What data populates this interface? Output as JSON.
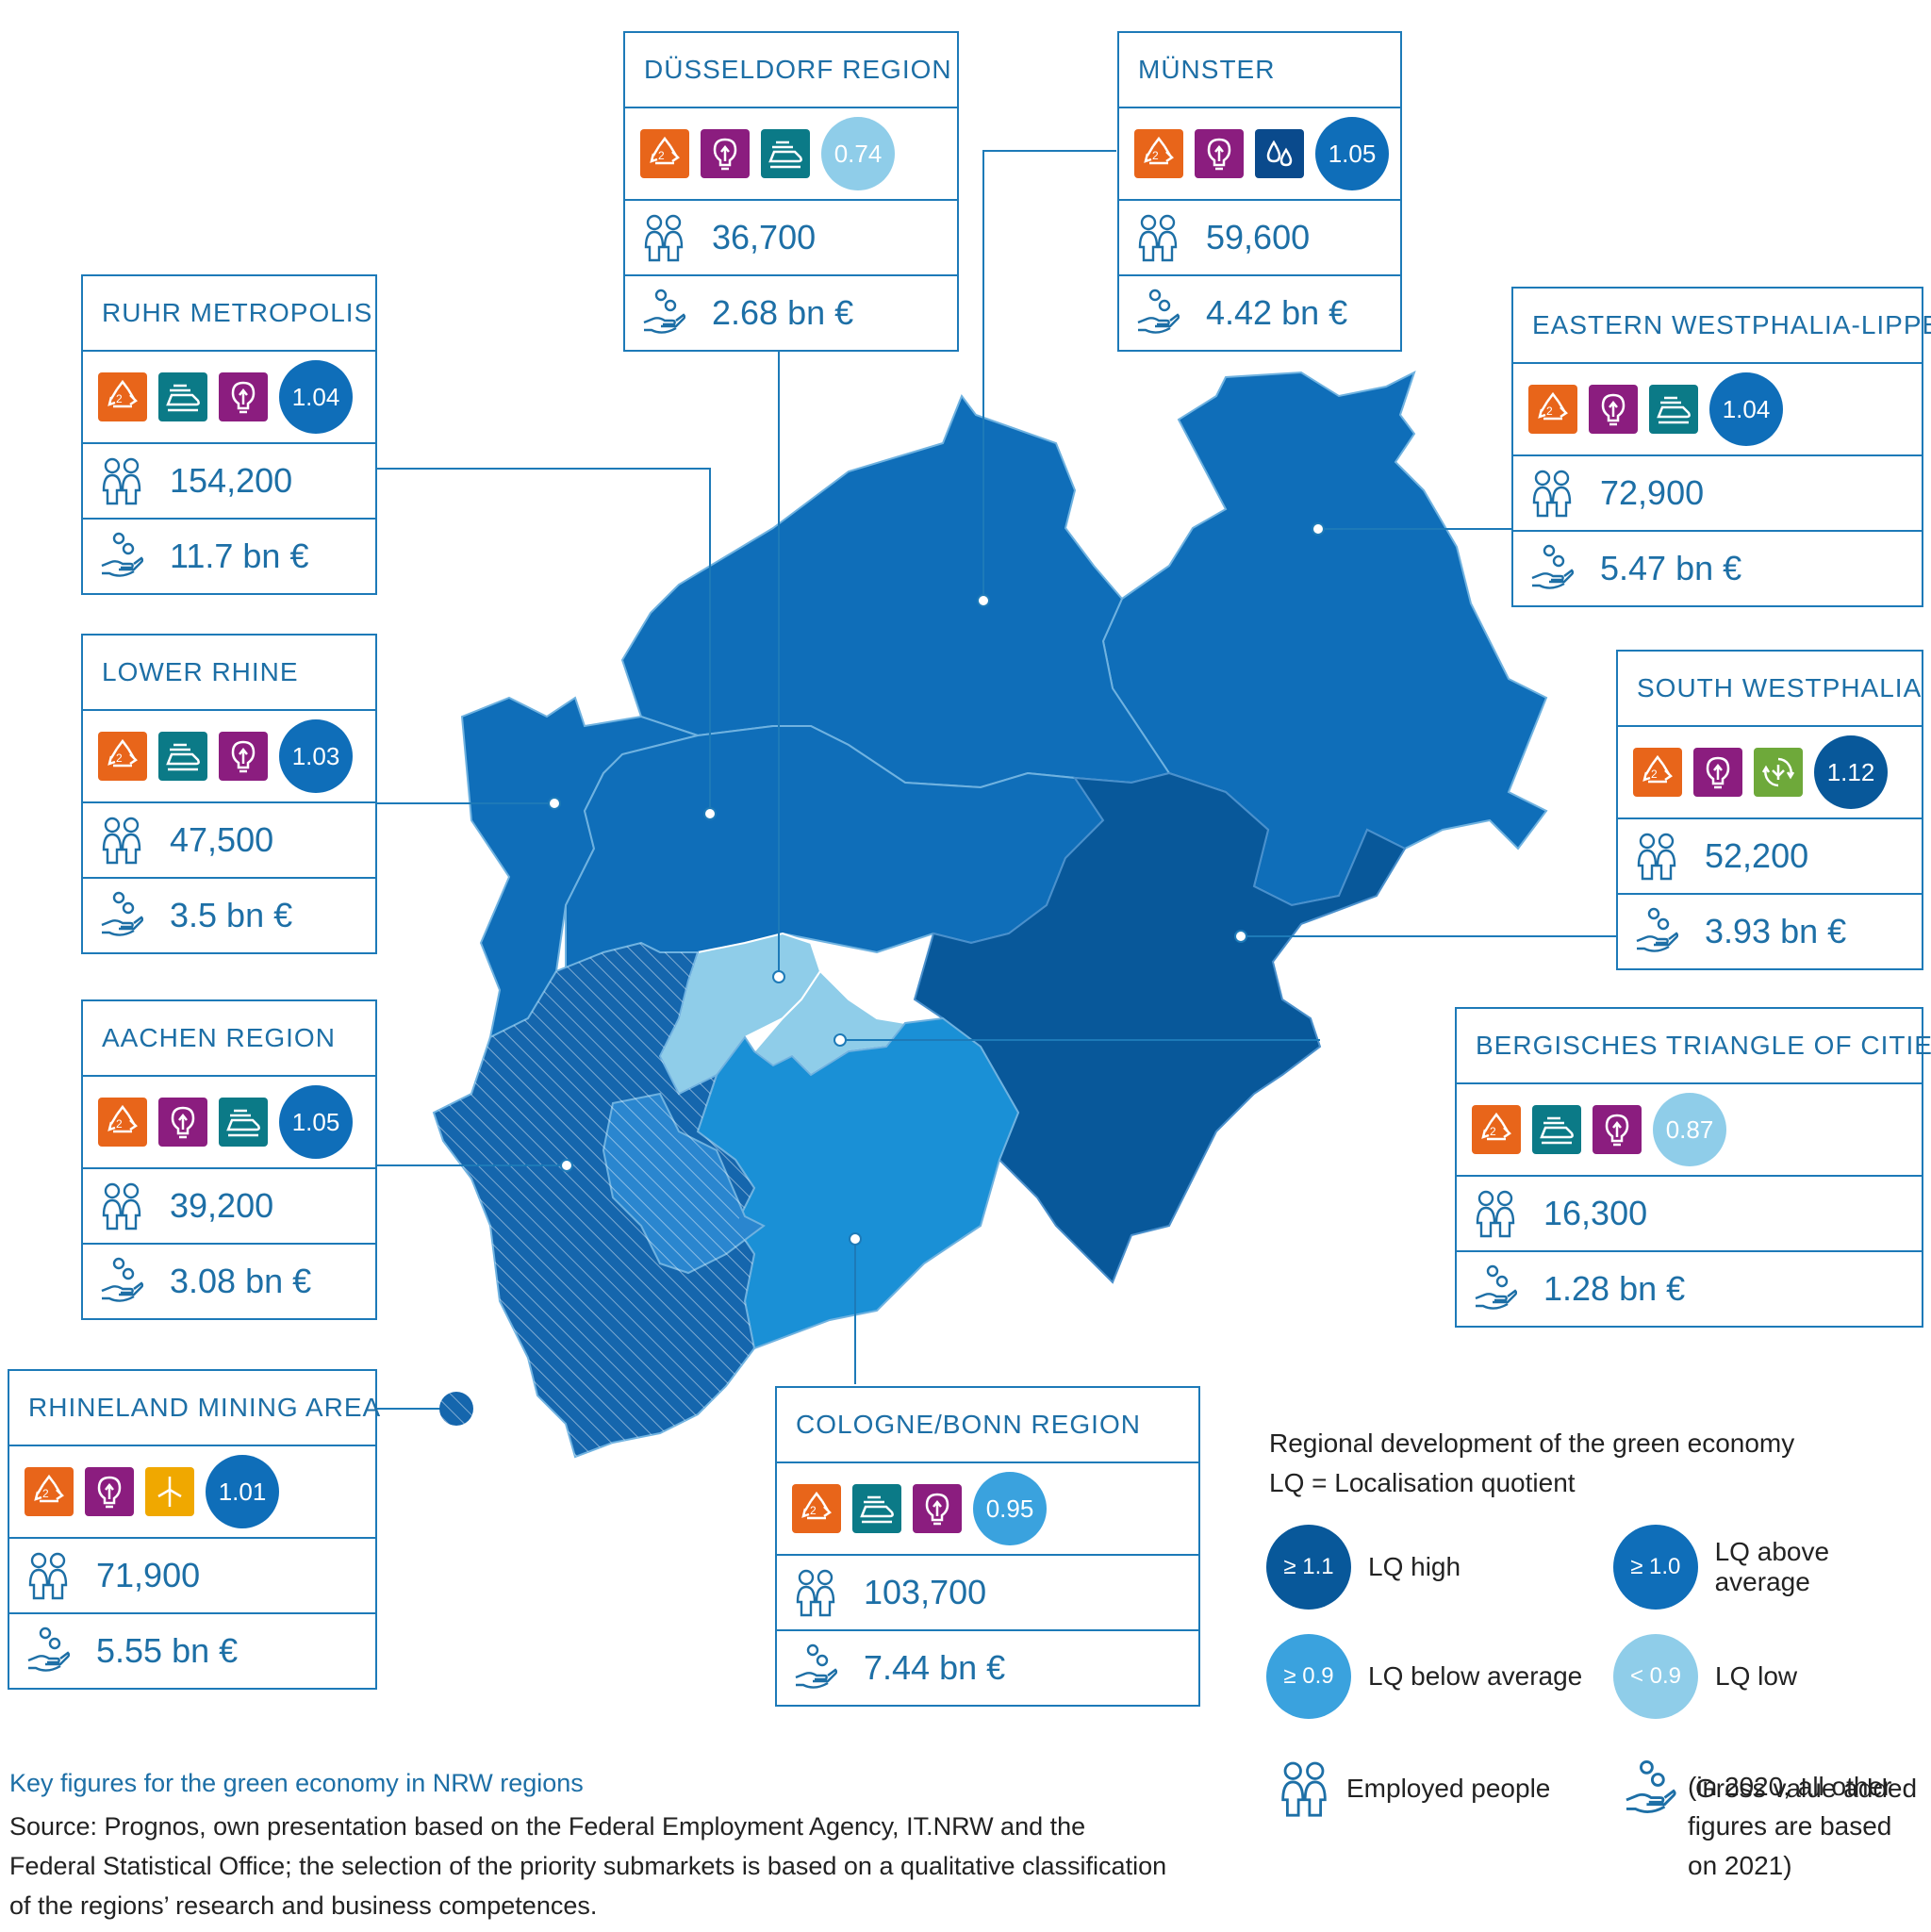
{
  "colors": {
    "lq_high": "#08589a",
    "lq_above": "#0f6eb9",
    "lq_below": "#3aa2de",
    "lq_low": "#8fcde9",
    "border": "#1d7ab8",
    "icon_recycling": "#e8651a",
    "icon_innovation": "#8b1d7f",
    "icon_transport": "#0b7a87",
    "icon_water": "#0a4a8c",
    "icon_circular": "#6ea93a",
    "icon_wind": "#f0a800"
  },
  "regions": [
    {
      "key": "dusseldorf",
      "title": "DÜSSELDORF REGION",
      "icons": [
        "recycling",
        "innovation",
        "transport"
      ],
      "lq": "0.74",
      "lq_class": "lq_low",
      "employed": "36,700",
      "gva": "2.68 bn €"
    },
    {
      "key": "munster",
      "title": "MÜNSTER",
      "icons": [
        "recycling",
        "innovation",
        "water"
      ],
      "lq": "1.05",
      "lq_class": "lq_above",
      "employed": "59,600",
      "gva": "4.42 bn €"
    },
    {
      "key": "ruhr",
      "title": "RUHR METROPOLIS",
      "icons": [
        "recycling",
        "transport",
        "innovation"
      ],
      "lq": "1.04",
      "lq_class": "lq_above",
      "employed": "154,200",
      "gva": "11.7 bn €"
    },
    {
      "key": "owl",
      "title": "EASTERN WESTPHALIA-LIPPE",
      "icons": [
        "recycling",
        "innovation",
        "transport"
      ],
      "lq": "1.04",
      "lq_class": "lq_above",
      "employed": "72,900",
      "gva": "5.47 bn €"
    },
    {
      "key": "lowerrhine",
      "title": "LOWER RHINE",
      "icons": [
        "recycling",
        "transport",
        "innovation"
      ],
      "lq": "1.03",
      "lq_class": "lq_above",
      "employed": "47,500",
      "gva": "3.5 bn €"
    },
    {
      "key": "southwest",
      "title": "SOUTH WESTPHALIA",
      "icons": [
        "recycling",
        "innovation",
        "circular"
      ],
      "lq": "1.12",
      "lq_class": "lq_high",
      "employed": "52,200",
      "gva": "3.93 bn €"
    },
    {
      "key": "aachen",
      "title": "AACHEN REGION",
      "icons": [
        "recycling",
        "innovation",
        "transport"
      ],
      "lq": "1.05",
      "lq_class": "lq_above",
      "employed": "39,200",
      "gva": "3.08 bn €"
    },
    {
      "key": "bergisch",
      "title": "BERGISCHES TRIANGLE OF CITIES",
      "icons": [
        "recycling",
        "transport",
        "innovation"
      ],
      "lq": "0.87",
      "lq_class": "lq_low",
      "employed": "16,300",
      "gva": "1.28 bn €"
    },
    {
      "key": "rhineland",
      "title": "RHINELAND MINING AREA",
      "icons": [
        "recycling",
        "innovation",
        "wind"
      ],
      "lq": "1.01",
      "lq_class": "lq_above",
      "employed": "71,900",
      "gva": "5.55 bn €"
    },
    {
      "key": "cologne",
      "title": "COLOGNE/BONN REGION",
      "icons": [
        "recycling",
        "transport",
        "innovation"
      ],
      "lq": "0.95",
      "lq_class": "lq_below",
      "employed": "103,700",
      "gva": "7.44 bn €"
    }
  ],
  "legend": {
    "title_line1": "Regional development of the green economy",
    "title_line2": "LQ = Localisation quotient",
    "items": [
      {
        "badge": "≥ 1.1",
        "label": "LQ high",
        "cls": "lq_high"
      },
      {
        "badge": "≥ 1.0",
        "label": "LQ above average",
        "cls": "lq_above"
      },
      {
        "badge": "≥ 0.9",
        "label": "LQ below average",
        "cls": "lq_below"
      },
      {
        "badge": "< 0.9",
        "label": "LQ low",
        "cls": "lq_low"
      }
    ],
    "employed_label": "Employed people",
    "gva_label": "Gross value added",
    "gva_note": "(in 2020, all other figures are based on 2021)"
  },
  "footer": {
    "title": "Key figures for the green economy in NRW regions",
    "source": "Source: Prognos, own presentation based on the Federal Employment Agency, IT.NRW and the Federal Statistical Office; the selection of the priority submarkets is based on a qualitative classification of the regions’ research and business competences."
  }
}
